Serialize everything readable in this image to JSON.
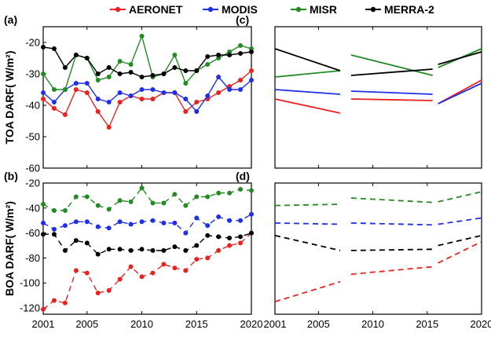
{
  "legend": [
    {
      "name": "AERONET",
      "color": "#e8231f"
    },
    {
      "name": "MODIS",
      "color": "#1f2fe8"
    },
    {
      "name": "MISR",
      "color": "#228b22"
    },
    {
      "name": "MERRA-2",
      "color": "#000000"
    }
  ],
  "chart_data": [
    {
      "panel": "(a)",
      "type": "line",
      "ylabel": "TOA DARF( W/m²)",
      "xlim": [
        2001,
        2020
      ],
      "ylim": [
        -60,
        -15
      ],
      "yticks": [
        -60,
        -50,
        -40,
        -30,
        -20
      ],
      "xticks": [
        2001,
        2005,
        2010,
        2015,
        2020
      ],
      "marker": "circle-filled",
      "series": [
        {
          "name": "AERONET",
          "color": "#e8231f",
          "x": [
            2001,
            2002,
            2003,
            2004,
            2005,
            2006,
            2007,
            2008,
            2009,
            2010,
            2011,
            2012,
            2013,
            2014,
            2015,
            2016,
            2017,
            2018,
            2019,
            2020
          ],
          "y": [
            -38,
            -41,
            -43,
            -35,
            -36,
            -42,
            -47,
            -39,
            -37,
            -38,
            -38,
            -36,
            -36,
            -42,
            -39,
            -38,
            -36,
            -34,
            -32,
            -29
          ]
        },
        {
          "name": "MODIS",
          "color": "#1f2fe8",
          "x": [
            2001,
            2002,
            2003,
            2004,
            2005,
            2006,
            2007,
            2008,
            2009,
            2010,
            2011,
            2012,
            2013,
            2014,
            2015,
            2016,
            2017,
            2018,
            2019,
            2020
          ],
          "y": [
            -36,
            -39,
            -35,
            -33,
            -33,
            -38,
            -39,
            -36,
            -37,
            -35,
            -35,
            -36,
            -36,
            -38,
            -42,
            -37,
            -31,
            -35,
            -35,
            -32
          ]
        },
        {
          "name": "MISR",
          "color": "#228b22",
          "x": [
            2001,
            2002,
            2003,
            2004,
            2005,
            2006,
            2007,
            2008,
            2009,
            2010,
            2011,
            2012,
            2013,
            2014,
            2015,
            2016,
            2017,
            2018,
            2019,
            2020
          ],
          "y": [
            -30,
            -35,
            -35,
            -24,
            -25,
            -32,
            -31,
            -26,
            -27,
            -18,
            -31,
            -30,
            -24,
            -33,
            -29,
            -27,
            -25,
            -23,
            -21,
            -22
          ]
        },
        {
          "name": "MERRA-2",
          "color": "#000000",
          "x": [
            2001,
            2002,
            2003,
            2004,
            2005,
            2006,
            2007,
            2008,
            2009,
            2010,
            2011,
            2012,
            2013,
            2014,
            2015,
            2016,
            2017,
            2018,
            2019,
            2020
          ],
          "y": [
            -21.5,
            -22,
            -28,
            -24,
            -25,
            -30,
            -28,
            -30,
            -29.5,
            -31,
            -30.5,
            -30,
            -28,
            -29,
            -29,
            -24.5,
            -24,
            -24,
            -23.5,
            -23
          ]
        }
      ]
    },
    {
      "panel": "(b)",
      "type": "line",
      "ylabel": "BOA DARF( W/m²)",
      "xlim": [
        2001,
        2020
      ],
      "ylim": [
        -125,
        -20
      ],
      "yticks": [
        -120,
        -100,
        -80,
        -60,
        -40,
        -20
      ],
      "xticks": [
        2001,
        2005,
        2010,
        2015,
        2020
      ],
      "marker": "circle-filled",
      "dashed": true,
      "series": [
        {
          "name": "AERONET",
          "color": "#e8231f",
          "x": [
            2001,
            2002,
            2003,
            2004,
            2005,
            2006,
            2007,
            2008,
            2009,
            2010,
            2011,
            2012,
            2013,
            2014,
            2015,
            2016,
            2017,
            2018,
            2019,
            2020
          ],
          "y": [
            -121,
            -114,
            -116,
            -90,
            -92,
            -108,
            -106,
            -97,
            -87,
            -95,
            -92,
            -85,
            -88,
            -90,
            -81,
            -80,
            -74,
            -70,
            -68,
            -60
          ]
        },
        {
          "name": "MODIS",
          "color": "#1f2fe8",
          "x": [
            2001,
            2002,
            2003,
            2004,
            2005,
            2006,
            2007,
            2008,
            2009,
            2010,
            2011,
            2012,
            2013,
            2014,
            2015,
            2016,
            2017,
            2018,
            2019,
            2020
          ],
          "y": [
            -52,
            -57,
            -54,
            -51,
            -51,
            -55,
            -56,
            -51,
            -53,
            -51,
            -50,
            -52,
            -52,
            -60,
            -48,
            -54,
            -47,
            -50,
            -50,
            -45
          ]
        },
        {
          "name": "MISR",
          "color": "#228b22",
          "x": [
            2001,
            2002,
            2003,
            2004,
            2005,
            2006,
            2007,
            2008,
            2009,
            2010,
            2011,
            2012,
            2013,
            2014,
            2015,
            2016,
            2017,
            2018,
            2019,
            2020
          ],
          "y": [
            -37,
            -42,
            -42,
            -31,
            -31,
            -38,
            -41,
            -34,
            -35,
            -24,
            -36,
            -36,
            -29,
            -38,
            -31,
            -31,
            -28,
            -28,
            -25,
            -26
          ]
        },
        {
          "name": "MERRA-2",
          "color": "#000000",
          "x": [
            2001,
            2002,
            2003,
            2004,
            2005,
            2006,
            2007,
            2008,
            2009,
            2010,
            2011,
            2012,
            2013,
            2014,
            2015,
            2016,
            2017,
            2018,
            2019,
            2020
          ],
          "y": [
            -61,
            -61,
            -74,
            -66,
            -68,
            -77,
            -73,
            -73,
            -74,
            -73,
            -74,
            -74,
            -71,
            -74,
            -70,
            -62,
            -63,
            -64,
            -63,
            -60
          ]
        }
      ]
    },
    {
      "panel": "(c)",
      "type": "line",
      "xlim": [
        2001,
        2020
      ],
      "ylim": [
        -60,
        -15
      ],
      "xticks": [
        2001,
        2005,
        2010,
        2015,
        2020
      ],
      "trend_segments": true,
      "series": [
        {
          "name": "AERONET",
          "color": "#e8231f",
          "segments": [
            [
              [
                2001,
                -38
              ],
              [
                2007,
                -42.5
              ]
            ],
            [
              [
                2008,
                -38
              ],
              [
                2015.5,
                -38.5
              ]
            ],
            [
              [
                2016,
                -39.5
              ],
              [
                2020,
                -32
              ]
            ]
          ]
        },
        {
          "name": "MODIS",
          "color": "#1f2fe8",
          "segments": [
            [
              [
                2001,
                -35
              ],
              [
                2007,
                -36.5
              ]
            ],
            [
              [
                2008,
                -35.5
              ],
              [
                2015.5,
                -36.5
              ]
            ],
            [
              [
                2016,
                -39.5
              ],
              [
                2020,
                -33
              ]
            ]
          ]
        },
        {
          "name": "MISR",
          "color": "#228b22",
          "segments": [
            [
              [
                2001,
                -31
              ],
              [
                2007,
                -29
              ]
            ],
            [
              [
                2008,
                -24
              ],
              [
                2015.5,
                -30.5
              ]
            ],
            [
              [
                2016,
                -28
              ],
              [
                2020,
                -22
              ]
            ]
          ]
        },
        {
          "name": "MERRA-2",
          "color": "#000000",
          "segments": [
            [
              [
                2001,
                -22
              ],
              [
                2007,
                -29
              ]
            ],
            [
              [
                2008,
                -30.5
              ],
              [
                2015.5,
                -28.5
              ]
            ],
            [
              [
                2016,
                -27
              ],
              [
                2020,
                -23
              ]
            ]
          ]
        }
      ]
    },
    {
      "panel": "(d)",
      "type": "line",
      "xlim": [
        2001,
        2020
      ],
      "ylim": [
        -125,
        -20
      ],
      "xticks": [
        2001,
        2005,
        2010,
        2015,
        2020
      ],
      "dashed": true,
      "trend_segments": true,
      "series": [
        {
          "name": "AERONET",
          "color": "#e8231f",
          "segments": [
            [
              [
                2001,
                -115
              ],
              [
                2007,
                -99
              ]
            ],
            [
              [
                2008,
                -93
              ],
              [
                2015.5,
                -87
              ]
            ],
            [
              [
                2016,
                -84
              ],
              [
                2020,
                -67
              ]
            ]
          ]
        },
        {
          "name": "MODIS",
          "color": "#1f2fe8",
          "segments": [
            [
              [
                2001,
                -52
              ],
              [
                2007,
                -53
              ]
            ],
            [
              [
                2008,
                -52
              ],
              [
                2015.5,
                -53.5
              ]
            ],
            [
              [
                2016,
                -53
              ],
              [
                2020,
                -48
              ]
            ]
          ]
        },
        {
          "name": "MISR",
          "color": "#228b22",
          "segments": [
            [
              [
                2001,
                -38
              ],
              [
                2007,
                -37
              ]
            ],
            [
              [
                2008,
                -32
              ],
              [
                2015.5,
                -35.5
              ]
            ],
            [
              [
                2016,
                -35
              ],
              [
                2020,
                -27
              ]
            ]
          ]
        },
        {
          "name": "MERRA-2",
          "color": "#000000",
          "segments": [
            [
              [
                2001,
                -62
              ],
              [
                2007,
                -74
              ]
            ],
            [
              [
                2008,
                -74
              ],
              [
                2015.5,
                -73
              ]
            ],
            [
              [
                2016,
                -70
              ],
              [
                2020,
                -62
              ]
            ]
          ]
        }
      ]
    }
  ]
}
